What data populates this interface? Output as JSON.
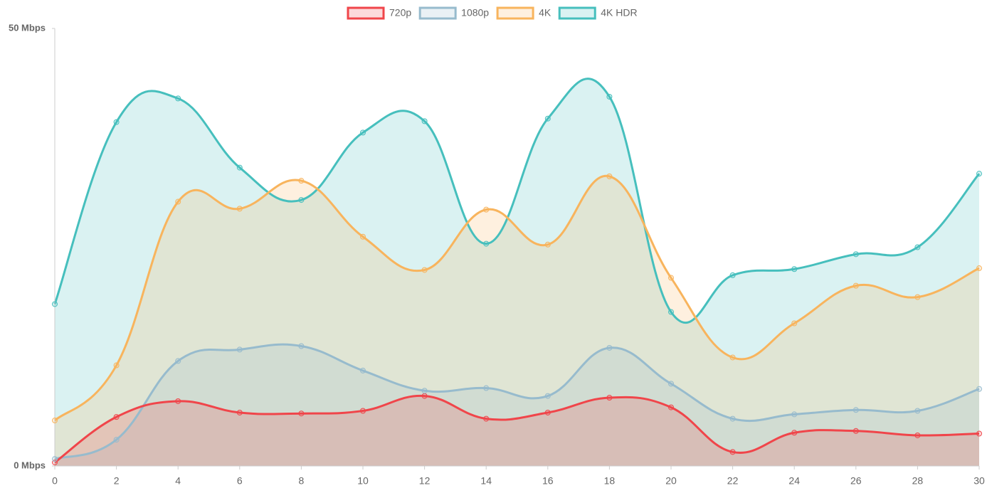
{
  "chart_data": {
    "type": "line",
    "x": [
      0,
      2,
      4,
      6,
      8,
      10,
      12,
      14,
      16,
      18,
      20,
      22,
      24,
      26,
      28,
      30
    ],
    "series": [
      {
        "name": "720p",
        "color": "#f0454a",
        "values": [
          0.4,
          5.6,
          7.4,
          6.1,
          6.0,
          6.3,
          8.0,
          5.4,
          6.1,
          7.8,
          6.7,
          1.6,
          3.8,
          4.0,
          3.5,
          3.7
        ]
      },
      {
        "name": "1080p",
        "color": "#97bbcd",
        "values": [
          0.8,
          3.0,
          12.0,
          13.3,
          13.7,
          10.9,
          8.6,
          8.9,
          8.0,
          13.5,
          9.4,
          5.4,
          5.9,
          6.4,
          6.3,
          8.8
        ]
      },
      {
        "name": "4K",
        "color": "#f8b45d",
        "values": [
          5.2,
          11.5,
          30.2,
          29.4,
          32.6,
          26.2,
          22.4,
          29.3,
          25.3,
          33.1,
          21.5,
          12.4,
          16.3,
          20.6,
          19.3,
          22.6
        ]
      },
      {
        "name": "4K HDR",
        "color": "#46bfbd",
        "values": [
          18.5,
          39.3,
          42.0,
          34.1,
          30.4,
          38.1,
          39.4,
          25.4,
          39.7,
          42.2,
          17.6,
          21.8,
          22.5,
          24.2,
          25.0,
          33.4
        ]
      }
    ],
    "xlim": [
      0,
      30
    ],
    "xticks": [
      0,
      2,
      4,
      6,
      8,
      10,
      12,
      14,
      16,
      18,
      20,
      22,
      24,
      26,
      28,
      30
    ],
    "ylim": [
      0,
      50
    ],
    "yticks": [
      {
        "value": 0,
        "label": "0 Mbps"
      },
      {
        "value": 50,
        "label": "50 Mbps"
      }
    ],
    "legend": "top",
    "area": true,
    "smooth": true
  }
}
